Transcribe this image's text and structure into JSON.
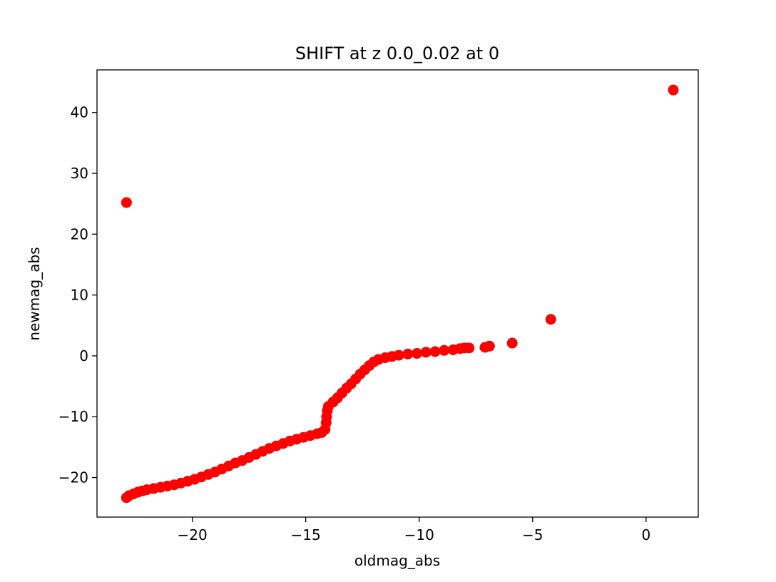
{
  "chart_data": {
    "type": "scatter",
    "title": "SHIFT at z 0.0_0.02 at 0",
    "xlabel": "oldmag_abs",
    "ylabel": "newmag_abs",
    "xlim": [
      -24.2,
      2.3
    ],
    "ylim": [
      -26.5,
      47.0
    ],
    "xticks": [
      -20,
      -15,
      -10,
      -5,
      0
    ],
    "xtick_labels": [
      "−20",
      "−15",
      "−10",
      "−5",
      "0"
    ],
    "yticks": [
      -20,
      -10,
      0,
      10,
      20,
      30,
      40
    ],
    "ytick_labels": [
      "−20",
      "−10",
      "0",
      "10",
      "20",
      "30",
      "40"
    ],
    "grid": false,
    "marker_color": "#ff0000",
    "series": [
      {
        "points": [
          [
            -22.9,
            -23.3
          ],
          [
            -22.8,
            -23.0
          ],
          [
            -22.6,
            -22.7
          ],
          [
            -22.4,
            -22.4
          ],
          [
            -22.2,
            -22.2
          ],
          [
            -22.0,
            -22.0
          ],
          [
            -21.7,
            -21.8
          ],
          [
            -21.4,
            -21.6
          ],
          [
            -21.1,
            -21.4
          ],
          [
            -20.8,
            -21.2
          ],
          [
            -20.5,
            -20.9
          ],
          [
            -20.2,
            -20.6
          ],
          [
            -19.9,
            -20.3
          ],
          [
            -19.6,
            -19.9
          ],
          [
            -19.3,
            -19.5
          ],
          [
            -19.0,
            -19.1
          ],
          [
            -18.7,
            -18.6
          ],
          [
            -18.4,
            -18.1
          ],
          [
            -18.1,
            -17.6
          ],
          [
            -17.8,
            -17.2
          ],
          [
            -17.5,
            -16.7
          ],
          [
            -17.2,
            -16.2
          ],
          [
            -16.9,
            -15.7
          ],
          [
            -16.6,
            -15.2
          ],
          [
            -16.3,
            -14.8
          ],
          [
            -16.0,
            -14.4
          ],
          [
            -15.7,
            -14.0
          ],
          [
            -15.4,
            -13.7
          ],
          [
            -15.1,
            -13.4
          ],
          [
            -14.8,
            -13.1
          ],
          [
            -14.5,
            -12.8
          ],
          [
            -14.3,
            -12.6
          ],
          [
            -14.15,
            -12.1
          ],
          [
            -14.1,
            -11.0
          ],
          [
            -14.08,
            -10.0
          ],
          [
            -14.05,
            -9.0
          ],
          [
            -14.0,
            -8.3
          ],
          [
            -13.8,
            -7.6
          ],
          [
            -13.6,
            -6.9
          ],
          [
            -13.4,
            -6.1
          ],
          [
            -13.2,
            -5.3
          ],
          [
            -13.0,
            -4.6
          ],
          [
            -12.8,
            -3.8
          ],
          [
            -12.6,
            -3.0
          ],
          [
            -12.4,
            -2.3
          ],
          [
            -12.2,
            -1.6
          ],
          [
            -12.0,
            -1.0
          ],
          [
            -11.8,
            -0.6
          ],
          [
            -11.5,
            -0.3
          ],
          [
            -11.2,
            -0.1
          ],
          [
            -10.9,
            0.1
          ],
          [
            -10.5,
            0.3
          ],
          [
            -10.1,
            0.4
          ],
          [
            -9.7,
            0.6
          ],
          [
            -9.3,
            0.7
          ],
          [
            -8.9,
            0.9
          ],
          [
            -8.5,
            1.0
          ],
          [
            -8.2,
            1.2
          ],
          [
            -8.0,
            1.3
          ],
          [
            -7.8,
            1.3
          ],
          [
            -7.1,
            1.4
          ],
          [
            -6.9,
            1.6
          ],
          [
            -5.9,
            2.1
          ],
          [
            -4.2,
            6.0
          ],
          [
            -22.9,
            25.2
          ],
          [
            1.2,
            43.7
          ]
        ]
      }
    ]
  }
}
